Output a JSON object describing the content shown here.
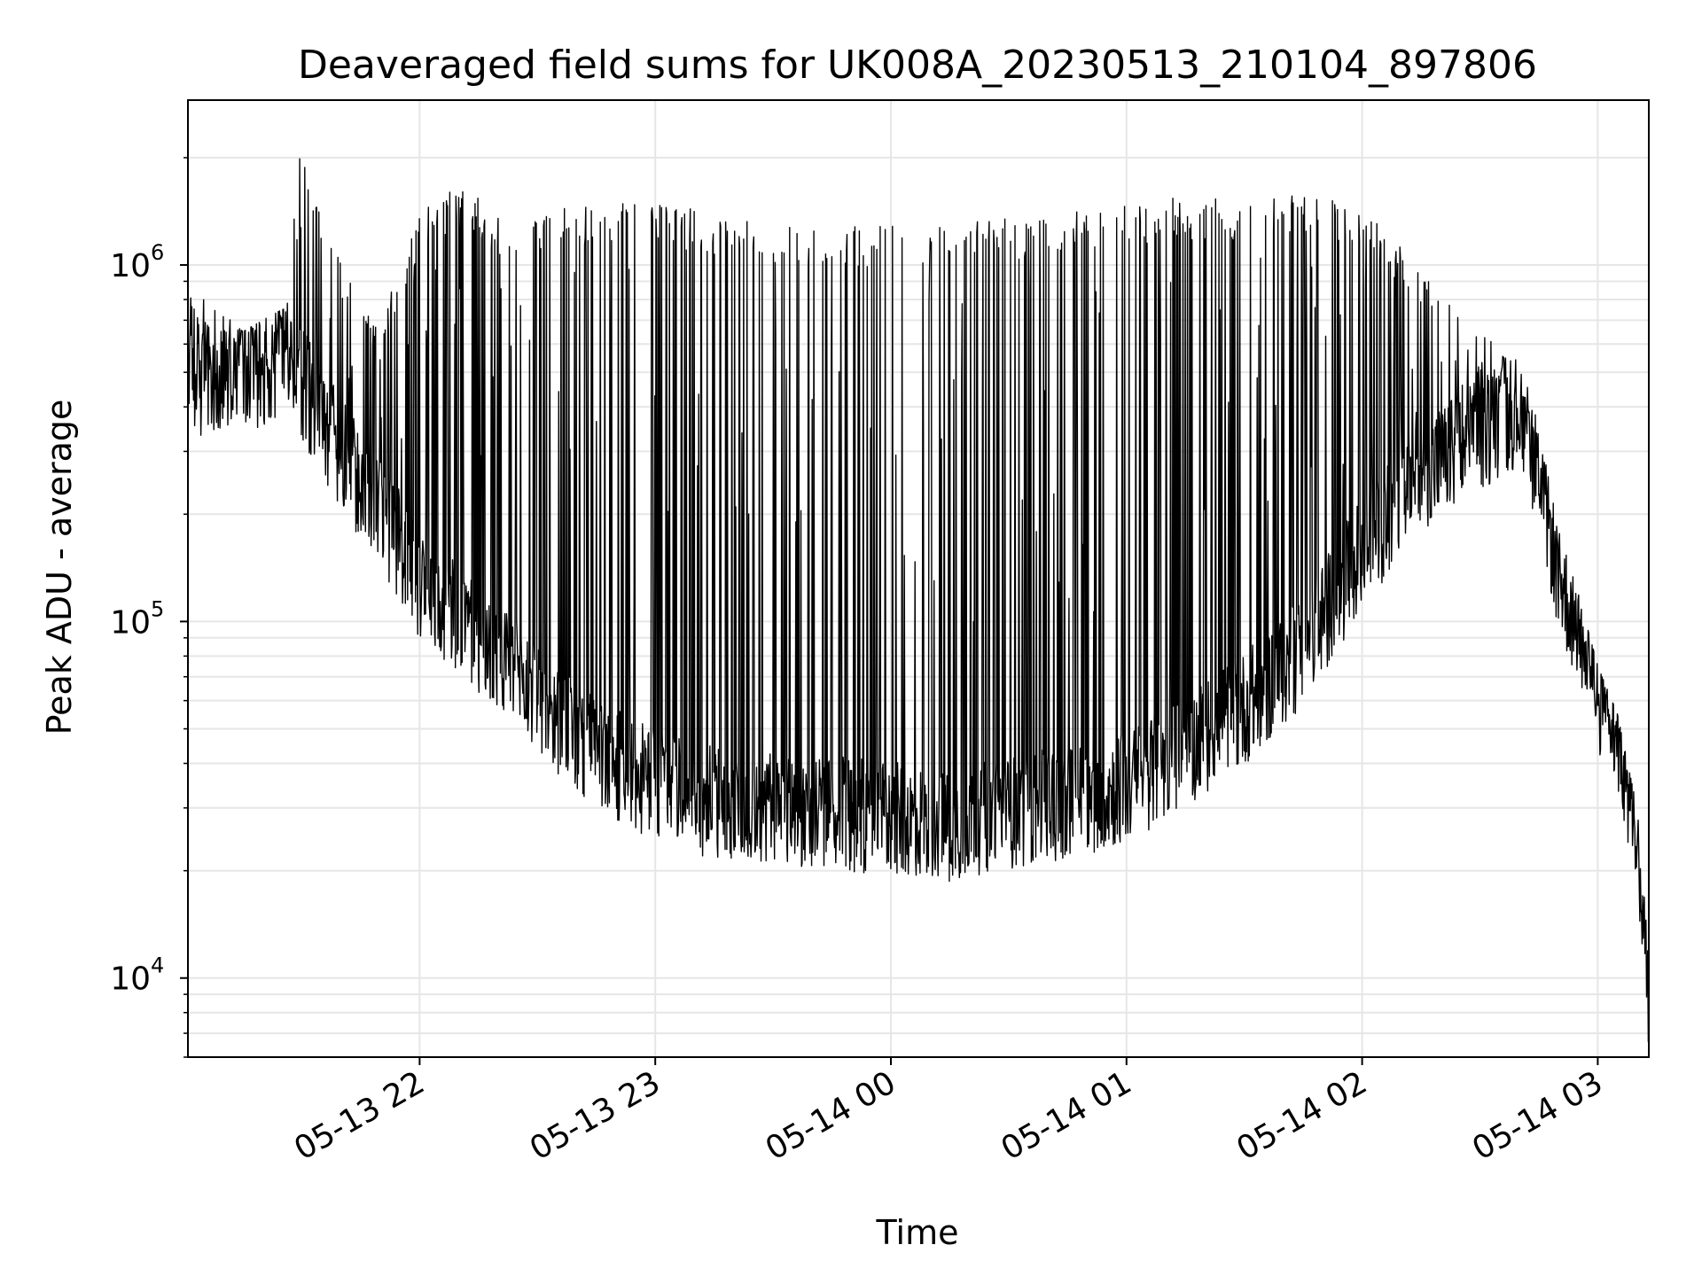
{
  "chart_data": {
    "type": "line",
    "title": "Deaveraged field sums for UK008A_20230513_210104_897806",
    "xlabel": "Time",
    "ylabel": "Peak ADU - average",
    "yscale": "log",
    "xlim": [
      "2023-05-13 21:01",
      "2023-05-14 03:13"
    ],
    "ylim": [
      6000,
      2900000
    ],
    "grid": true,
    "x_ticks": [
      {
        "t": "2023-05-13 22:00",
        "label": "05-13 22"
      },
      {
        "t": "2023-05-13 23:00",
        "label": "05-13 23"
      },
      {
        "t": "2023-05-14 00:00",
        "label": "05-14 00"
      },
      {
        "t": "2023-05-14 01:00",
        "label": "05-14 01"
      },
      {
        "t": "2023-05-14 02:00",
        "label": "05-14 02"
      },
      {
        "t": "2023-05-14 03:00",
        "label": "05-14 03"
      }
    ],
    "y_ticks": [
      {
        "value": 10000,
        "base": "10",
        "exp": "4"
      },
      {
        "value": 100000,
        "base": "10",
        "exp": "5"
      },
      {
        "value": 1000000,
        "base": "10",
        "exp": "6"
      }
    ],
    "series_color": "#000000",
    "envelope": [
      {
        "t": "2023-05-13 21:01",
        "base": 450000,
        "peak": 900000
      },
      {
        "t": "2023-05-13 21:15",
        "base": 500000,
        "peak": 650000
      },
      {
        "t": "2023-05-13 21:20",
        "base": 470000,
        "peak": 700000
      },
      {
        "t": "2023-05-13 21:25",
        "base": 550000,
        "peak": 750000
      },
      {
        "t": "2023-05-13 21:30",
        "base": 450000,
        "peak": 2300000
      },
      {
        "t": "2023-05-13 21:40",
        "base": 280000,
        "peak": 1000000
      },
      {
        "t": "2023-05-13 21:50",
        "base": 200000,
        "peak": 700000
      },
      {
        "t": "2023-05-13 22:00",
        "base": 120000,
        "peak": 1400000
      },
      {
        "t": "2023-05-13 22:10",
        "base": 100000,
        "peak": 1700000
      },
      {
        "t": "2023-05-13 22:20",
        "base": 75000,
        "peak": 1400000
      },
      {
        "t": "2023-05-13 22:30",
        "base": 60000,
        "peak": 1400000
      },
      {
        "t": "2023-05-13 22:40",
        "base": 45000,
        "peak": 1500000
      },
      {
        "t": "2023-05-13 22:50",
        "base": 38000,
        "peak": 1500000
      },
      {
        "t": "2023-05-13 23:00",
        "base": 33000,
        "peak": 1500000
      },
      {
        "t": "2023-05-13 23:15",
        "base": 30000,
        "peak": 1400000
      },
      {
        "t": "2023-05-13 23:30",
        "base": 29000,
        "peak": 1300000
      },
      {
        "t": "2023-05-13 23:45",
        "base": 28000,
        "peak": 1300000
      },
      {
        "t": "2023-05-14 00:00",
        "base": 27000,
        "peak": 1300000
      },
      {
        "t": "2023-05-14 00:15",
        "base": 26000,
        "peak": 1300000
      },
      {
        "t": "2023-05-14 00:30",
        "base": 28000,
        "peak": 1350000
      },
      {
        "t": "2023-05-14 00:45",
        "base": 30000,
        "peak": 1400000
      },
      {
        "t": "2023-05-14 01:00",
        "base": 33000,
        "peak": 1500000
      },
      {
        "t": "2023-05-14 01:15",
        "base": 42000,
        "peak": 1550000
      },
      {
        "t": "2023-05-14 01:30",
        "base": 55000,
        "peak": 1550000
      },
      {
        "t": "2023-05-14 01:45",
        "base": 80000,
        "peak": 1600000
      },
      {
        "t": "2023-05-14 02:00",
        "base": 150000,
        "peak": 1500000
      },
      {
        "t": "2023-05-14 02:15",
        "base": 250000,
        "peak": 1000000
      },
      {
        "t": "2023-05-14 02:30",
        "base": 320000,
        "peak": 650000
      },
      {
        "t": "2023-05-14 02:40",
        "base": 380000,
        "peak": 550000
      },
      {
        "t": "2023-05-14 02:45",
        "base": 250000,
        "peak": 350000
      },
      {
        "t": "2023-05-14 02:50",
        "base": 130000,
        "peak": 180000
      },
      {
        "t": "2023-05-14 02:55",
        "base": 90000,
        "peak": 120000
      },
      {
        "t": "2023-05-14 03:00",
        "base": 60000,
        "peak": 75000
      },
      {
        "t": "2023-05-14 03:05",
        "base": 45000,
        "peak": 55000
      },
      {
        "t": "2023-05-14 03:10",
        "base": 25000,
        "peak": 30000
      },
      {
        "t": "2023-05-14 03:13",
        "base": 8000,
        "peak": 13000
      }
    ]
  }
}
